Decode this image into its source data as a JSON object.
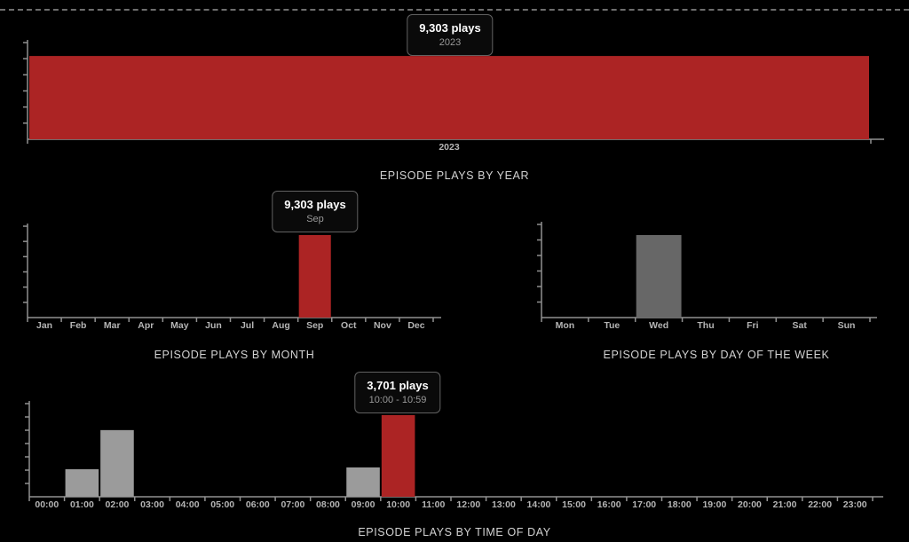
{
  "colors": {
    "background": "#000000",
    "accent_red": "#AC2424",
    "bar_gray_dark": "#676767",
    "bar_gray_light": "#9B9B9B",
    "axis": "#919191",
    "tick_label": "#b5b5b5",
    "title": "#d2d2d2",
    "tooltip_border": "#616161",
    "tooltip_bg": "#0a0a0a",
    "tooltip_title": "#ffffff",
    "tooltip_subtitle": "#9a9a9a"
  },
  "tooltips": [
    {
      "id": "year",
      "title": "9,303 plays",
      "subtitle": "2023"
    },
    {
      "id": "month",
      "title": "9,303 plays",
      "subtitle": "Sep"
    },
    {
      "id": "hour",
      "title": "3,701 plays",
      "subtitle": "10:00 - 10:59"
    }
  ],
  "chart_data": [
    {
      "id": "year",
      "type": "bar",
      "title": "EPISODE PLAYS BY YEAR",
      "categories": [
        "2023"
      ],
      "values": [
        9303
      ],
      "ylim": [
        0,
        10800
      ],
      "grid": false,
      "legend": "none",
      "bar_color": "#AC2424",
      "highlight_index": 0,
      "highlight_color": "#AC2424",
      "tooltip": {
        "title": "9,303 plays",
        "subtitle": "2023"
      }
    },
    {
      "id": "month",
      "type": "bar",
      "title": "EPISODE PLAYS BY MONTH",
      "categories": [
        "Jan",
        "Feb",
        "Mar",
        "Apr",
        "May",
        "Jun",
        "Jul",
        "Aug",
        "Sep",
        "Oct",
        "Nov",
        "Dec"
      ],
      "values": [
        0,
        0,
        0,
        0,
        0,
        0,
        0,
        0,
        9303,
        0,
        0,
        0
      ],
      "ylim": [
        0,
        10300
      ],
      "grid": false,
      "legend": "none",
      "bar_color": "#9B9B9B",
      "highlight_index": 8,
      "highlight_color": "#AC2424",
      "tooltip": {
        "title": "9,303 plays",
        "subtitle": "Sep"
      }
    },
    {
      "id": "weekday",
      "type": "bar",
      "title": "EPISODE PLAYS BY DAY OF THE WEEK",
      "categories": [
        "Mon",
        "Tue",
        "Wed",
        "Thu",
        "Fri",
        "Sat",
        "Sun"
      ],
      "values": [
        0,
        0,
        9300,
        0,
        0,
        0,
        0
      ],
      "ylim": [
        0,
        10500
      ],
      "grid": false,
      "legend": "none",
      "bar_color": "#676767",
      "highlight_index": -1,
      "highlight_color": "#676767"
    },
    {
      "id": "hour",
      "type": "bar",
      "title": "EPISODE PLAYS BY TIME OF DAY",
      "categories": [
        "00:00",
        "01:00",
        "02:00",
        "03:00",
        "04:00",
        "05:00",
        "06:00",
        "07:00",
        "08:00",
        "09:00",
        "10:00",
        "11:00",
        "12:00",
        "13:00",
        "14:00",
        "15:00",
        "16:00",
        "17:00",
        "18:00",
        "19:00",
        "20:00",
        "21:00",
        "22:00",
        "23:00"
      ],
      "values": [
        0,
        1250,
        3020,
        0,
        0,
        0,
        0,
        0,
        0,
        1330,
        3701,
        0,
        0,
        0,
        0,
        0,
        0,
        0,
        0,
        0,
        0,
        0,
        0,
        0
      ],
      "ylim": [
        0,
        4220
      ],
      "grid": false,
      "legend": "none",
      "bar_color": "#9B9B9B",
      "highlight_index": 10,
      "highlight_color": "#AC2424",
      "tooltip": {
        "title": "3,701 plays",
        "subtitle": "10:00 - 10:59"
      }
    }
  ]
}
